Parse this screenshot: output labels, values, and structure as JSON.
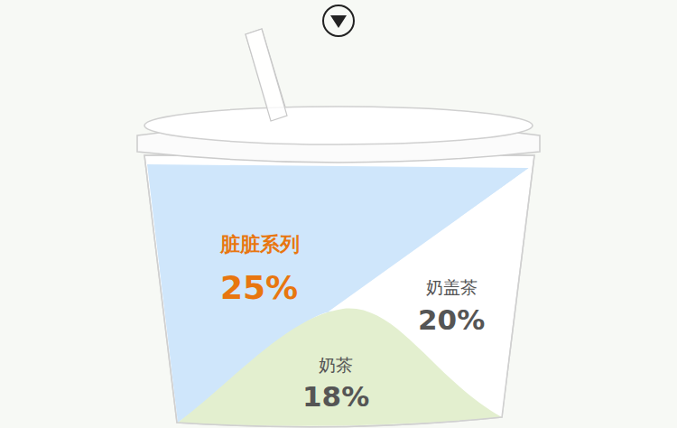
{
  "chart_data": {
    "type": "infographic",
    "categories": [
      "脏脏系列",
      "奶盖茶",
      "奶茶"
    ],
    "values": [
      25,
      20,
      18
    ],
    "value_labels": [
      "25%",
      "20%",
      "18%"
    ],
    "colors": [
      "#cfe6fb",
      "#ffffff",
      "#e3efcf"
    ],
    "data_labels": true
  }
}
